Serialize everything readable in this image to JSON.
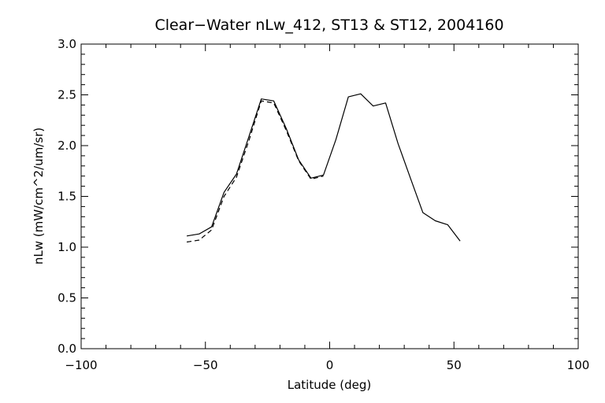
{
  "chart_data": {
    "type": "line",
    "title": "Clear−Water nLw_412, ST13 & ST12, 2004160",
    "xlabel": "Latitude (deg)",
    "ylabel": "nLw (mW/cm^2/um/sr)",
    "xlim": [
      -100,
      100
    ],
    "ylim": [
      0.0,
      3.0
    ],
    "x_ticks": [
      -100,
      -50,
      0,
      50,
      100
    ],
    "x_tick_labels": [
      "−100",
      "−50",
      "0",
      "50",
      "100"
    ],
    "y_ticks": [
      0.0,
      0.5,
      1.0,
      1.5,
      2.0,
      2.5,
      3.0
    ],
    "y_tick_labels": [
      "0.0",
      "0.5",
      "1.0",
      "1.5",
      "2.0",
      "2.5",
      "3.0"
    ],
    "grid": false,
    "series": [
      {
        "line_style": "solid",
        "x": [
          -57.5,
          -52.5,
          -47.5,
          -42.5,
          -37.5,
          -32.5,
          -27.5,
          -22.5,
          -17.5,
          -12.5,
          -7.5,
          -2.5,
          2.5,
          7.5,
          12.5,
          17.5,
          22.5,
          27.5,
          32.5,
          37.5,
          42.5,
          47.5,
          52.5
        ],
        "values": [
          1.11,
          1.13,
          1.2,
          1.54,
          1.72,
          2.09,
          2.46,
          2.44,
          2.17,
          1.86,
          1.68,
          1.71,
          2.06,
          2.48,
          2.51,
          2.39,
          2.42,
          2.02,
          1.68,
          1.34,
          1.26,
          1.22,
          1.06
        ]
      },
      {
        "line_style": "dashed",
        "x": [
          -57.5,
          -52.5,
          -47.5,
          -42.5,
          -37.5,
          -32.5,
          -27.5,
          -22.5,
          -17.5,
          -12.5,
          -7.5,
          -2.5
        ],
        "values": [
          1.05,
          1.07,
          1.17,
          1.5,
          1.69,
          2.05,
          2.44,
          2.42,
          2.15,
          1.85,
          1.67,
          1.7
        ]
      }
    ]
  }
}
